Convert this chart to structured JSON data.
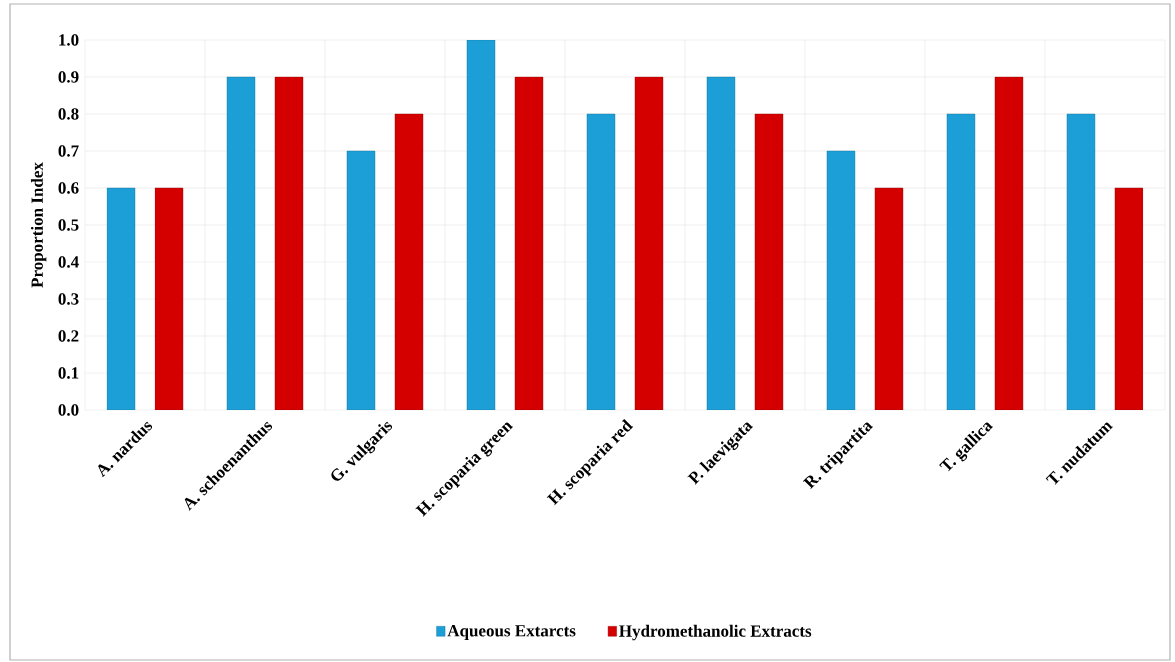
{
  "chart_data": {
    "type": "bar",
    "ylabel": "Proportion Index",
    "categories": [
      "A. nardus",
      "A. schoenanthus",
      "G. vulgaris",
      "H. scoparia green",
      "H. scoparia red",
      "P. laevigata",
      "R. tripartita",
      "T. gallica",
      "T. nudatum"
    ],
    "series": [
      {
        "name": "Aqueous Extarcts",
        "color": "#1b9fd6",
        "values": [
          0.6,
          0.9,
          0.7,
          1.0,
          0.8,
          0.9,
          0.7,
          0.8,
          0.8
        ]
      },
      {
        "name": "Hydromethanolic Extracts",
        "color": "#d40000",
        "values": [
          0.6,
          0.9,
          0.8,
          0.9,
          0.9,
          0.8,
          0.6,
          0.9,
          0.6
        ]
      }
    ],
    "ylim": [
      0,
      1
    ],
    "yticks": [
      {
        "value": 0,
        "label": "0.0"
      },
      {
        "value": 0.1,
        "label": "0.1"
      },
      {
        "value": 0.2,
        "label": "0.2"
      },
      {
        "value": 0.3,
        "label": "0.3"
      },
      {
        "value": 0.4,
        "label": "0.4"
      },
      {
        "value": 0.5,
        "label": "0.5"
      },
      {
        "value": 0.6,
        "label": "0.6"
      },
      {
        "value": 0.7,
        "label": "0.7"
      },
      {
        "value": 0.8,
        "label": "0.8"
      },
      {
        "value": 0.9,
        "label": "0.9"
      },
      {
        "value": 1,
        "label": "1.0"
      }
    ],
    "grid": true,
    "legend": "bottom"
  }
}
